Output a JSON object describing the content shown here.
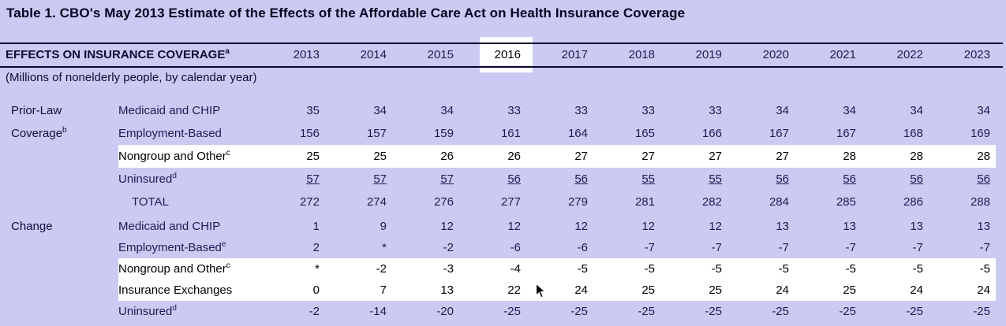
{
  "title": "Table 1. CBO's May 2013 Estimate of the Effects of the Affordable Care Act on Health Insurance Coverage",
  "colors": {
    "background": "#cacaf2",
    "text_navy": "#1d1d55",
    "rule_dark": "#07072b",
    "highlight_fill": "#ffffff",
    "highlight_text": "#000000"
  },
  "table": {
    "header": {
      "label": "EFFECTS ON INSURANCE COVERAGE",
      "superscript": "a",
      "years": [
        "2013",
        "2014",
        "2015",
        "2016",
        "2017",
        "2018",
        "2019",
        "2020",
        "2021",
        "2022",
        "2023"
      ],
      "highlighted_year": "2016"
    },
    "subtitle": "(Millions of nonelderly people, by calendar year)",
    "sections": [
      {
        "name": "prior-law-coverage",
        "rows": [
          {
            "group": "Prior-Law",
            "group_sup": "",
            "label": "Medicaid and CHIP",
            "sup": "",
            "indent": false,
            "highlight": false,
            "underline": false,
            "values": [
              "35",
              "34",
              "34",
              "33",
              "33",
              "33",
              "33",
              "34",
              "34",
              "34",
              "34"
            ]
          },
          {
            "group": "Coverage",
            "group_sup": "b",
            "label": "Employment-Based",
            "sup": "",
            "indent": false,
            "highlight": false,
            "underline": false,
            "values": [
              "156",
              "157",
              "159",
              "161",
              "164",
              "165",
              "166",
              "167",
              "167",
              "168",
              "169"
            ]
          },
          {
            "group": "",
            "group_sup": "",
            "label": "Nongroup and Other",
            "sup": "c",
            "indent": false,
            "highlight": true,
            "underline": false,
            "values": [
              "25",
              "25",
              "26",
              "26",
              "27",
              "27",
              "27",
              "27",
              "28",
              "28",
              "28"
            ]
          },
          {
            "group": "",
            "group_sup": "",
            "label": "Uninsured",
            "sup": "d",
            "indent": false,
            "highlight": false,
            "underline": true,
            "values": [
              "57",
              "57",
              "57",
              "56",
              "56",
              "55",
              "55",
              "56",
              "56",
              "56",
              "56"
            ]
          },
          {
            "group": "",
            "group_sup": "",
            "label": "TOTAL",
            "sup": "",
            "indent": true,
            "highlight": false,
            "underline": false,
            "values": [
              "272",
              "274",
              "276",
              "277",
              "279",
              "281",
              "282",
              "284",
              "285",
              "286",
              "288"
            ]
          }
        ]
      },
      {
        "name": "change",
        "rows": [
          {
            "group": "Change",
            "group_sup": "",
            "label": "Medicaid and CHIP",
            "sup": "",
            "indent": false,
            "highlight": false,
            "underline": false,
            "values": [
              "1",
              "9",
              "12",
              "12",
              "12",
              "12",
              "12",
              "13",
              "13",
              "13",
              "13"
            ]
          },
          {
            "group": "",
            "group_sup": "",
            "label": "Employment-Based",
            "sup": "e",
            "indent": false,
            "highlight": false,
            "underline": false,
            "values": [
              "2",
              "*",
              "-2",
              "-6",
              "-6",
              "-7",
              "-7",
              "-7",
              "-7",
              "-7",
              "-7"
            ]
          },
          {
            "group": "",
            "group_sup": "",
            "label": "Nongroup and Other",
            "sup": "c",
            "indent": false,
            "highlight": true,
            "underline": false,
            "values": [
              "*",
              "-2",
              "-3",
              "-4",
              "-5",
              "-5",
              "-5",
              "-5",
              "-5",
              "-5",
              "-5"
            ]
          },
          {
            "group": "",
            "group_sup": "",
            "label": "Insurance Exchanges",
            "sup": "",
            "indent": false,
            "highlight": true,
            "underline": false,
            "values": [
              "0",
              "7",
              "13",
              "22",
              "24",
              "25",
              "25",
              "24",
              "25",
              "24",
              "24"
            ]
          },
          {
            "group": "",
            "group_sup": "",
            "label": "Uninsured",
            "sup": "d",
            "indent": false,
            "highlight": false,
            "underline": false,
            "values": [
              "-2",
              "-14",
              "-20",
              "-25",
              "-25",
              "-25",
              "-25",
              "-25",
              "-25",
              "-25",
              "-25"
            ]
          }
        ]
      }
    ]
  },
  "cursor": {
    "icon": "arrow-pointer"
  }
}
